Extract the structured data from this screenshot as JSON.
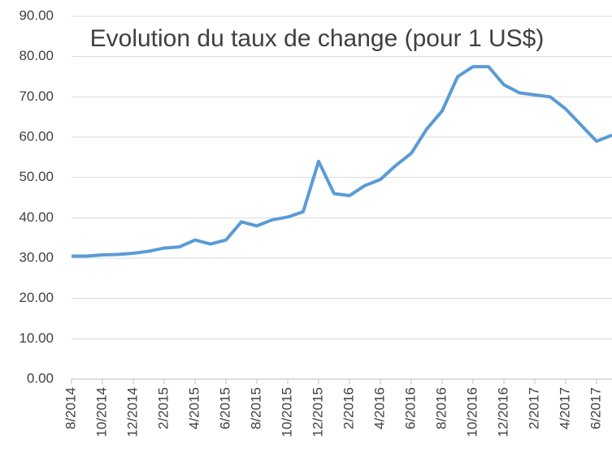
{
  "chart_data": {
    "type": "line",
    "title": "Evolution du taux de change (pour 1 US$)",
    "categories": [
      "8/2014",
      null,
      "10/2014",
      null,
      "12/2014",
      null,
      "2/2015",
      null,
      "4/2015",
      null,
      "6/2015",
      null,
      "8/2015",
      null,
      "10/2015",
      null,
      "12/2015",
      null,
      "2/2016",
      null,
      "4/2016",
      null,
      "6/2016",
      null,
      "8/2016",
      null,
      "10/2016",
      null,
      "12/2016",
      null,
      "2/2017",
      null,
      "4/2017",
      null,
      "6/2017",
      null
    ],
    "series": [
      {
        "name": "US$",
        "color": "#5b9bd5",
        "values": [
          30.5,
          30.5,
          30.8,
          30.9,
          31.2,
          31.7,
          32.5,
          32.8,
          34.5,
          33.5,
          34.5,
          39,
          38,
          39.5,
          40.2,
          41.5,
          54,
          46,
          45.5,
          48,
          49.5,
          53,
          56,
          62,
          66.5,
          75,
          77.5,
          77.5,
          73,
          71,
          70.5,
          70,
          67,
          63,
          59,
          60.5
        ]
      }
    ],
    "ylim": [
      0,
      90
    ],
    "yticks": [
      {
        "value": 0,
        "label": "0.00"
      },
      {
        "value": 10,
        "label": "10.00"
      },
      {
        "value": 20,
        "label": "20.00"
      },
      {
        "value": 30,
        "label": "30.00"
      },
      {
        "value": 40,
        "label": "40.00"
      },
      {
        "value": 50,
        "label": "50.00"
      },
      {
        "value": 60,
        "label": "60.00"
      },
      {
        "value": 70,
        "label": "70.00"
      },
      {
        "value": 80,
        "label": "80.00"
      },
      {
        "value": 90,
        "label": "90.00"
      }
    ],
    "grid": true
  }
}
